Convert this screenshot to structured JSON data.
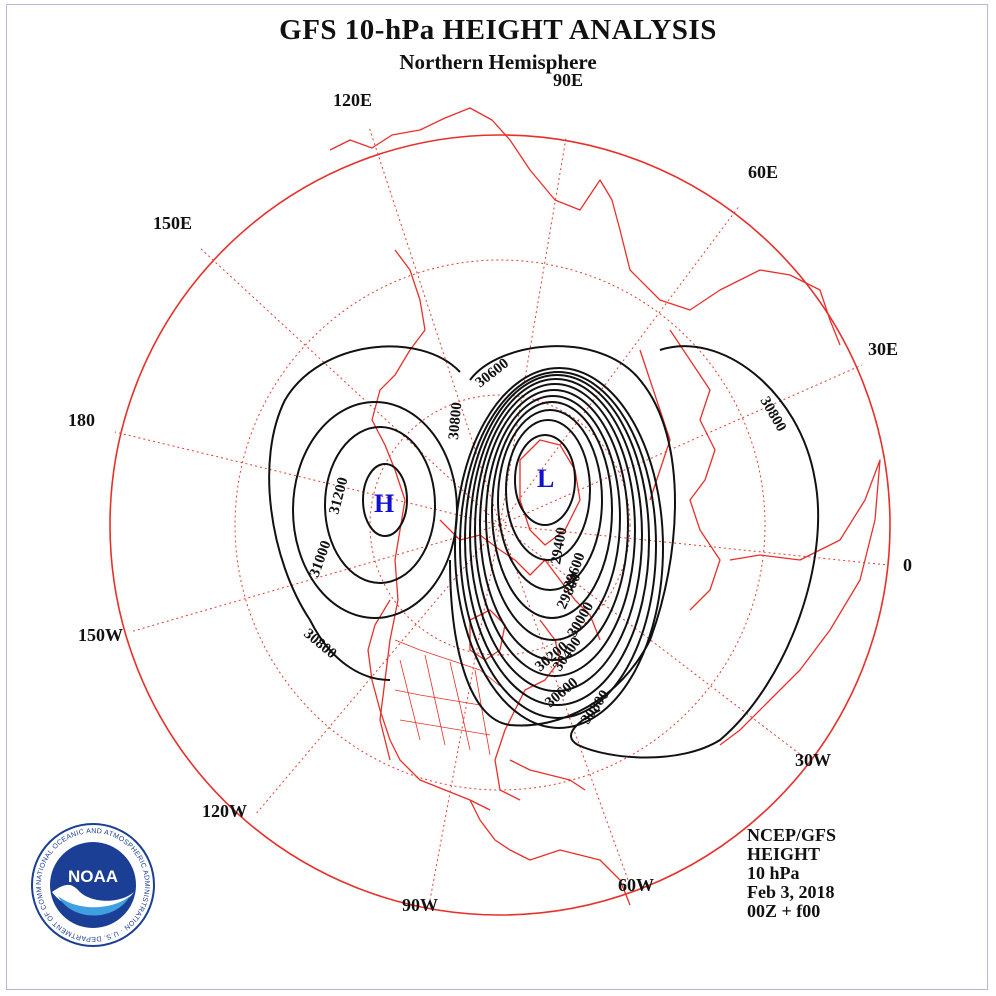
{
  "header": {
    "title": "GFS 10-hPa HEIGHT ANALYSIS",
    "subtitle": "Northern Hemisphere"
  },
  "longitude_labels": {
    "lon_90e": "90E",
    "lon_120e": "120E",
    "lon_60e": "60E",
    "lon_150e": "150E",
    "lon_30e": "30E",
    "lon_180": "180",
    "lon_0": "0",
    "lon_150w": "150W",
    "lon_30w": "30W",
    "lon_120w": "120W",
    "lon_60w": "60W",
    "lon_90w": "90W"
  },
  "centers": {
    "high": "H",
    "low": "L"
  },
  "contour_labels": {
    "c31200": "31200",
    "c31000": "31000",
    "c30800_w": "30800",
    "c30800_nw": "30800",
    "c30600_n": "30600",
    "c30800_e": "30800",
    "c30800_s": "30800",
    "c30600_s": "30600",
    "c30400": "30400",
    "c30200": "30200",
    "c30000": "30000",
    "c29800": "29800",
    "c29600": "29600",
    "c29400": "29400"
  },
  "info": {
    "line1": "NCEP/GFS",
    "line2": "HEIGHT",
    "line3": "10 hPa",
    "line4": "Feb 3, 2018",
    "line5": "00Z + f00"
  },
  "logo": {
    "text": "NOAA",
    "ring_text": "NATIONAL OCEANIC AND ATMOSPHERIC ADMINISTRATION · U.S. DEPARTMENT OF COMMERCE",
    "icon": "noaa-logo-icon"
  },
  "colors": {
    "map_lines": "#e8302a",
    "grid": "#e04030",
    "contours": "#111111",
    "center_labels": "#1010d0",
    "noaa_blue": "#1b3f94"
  }
}
